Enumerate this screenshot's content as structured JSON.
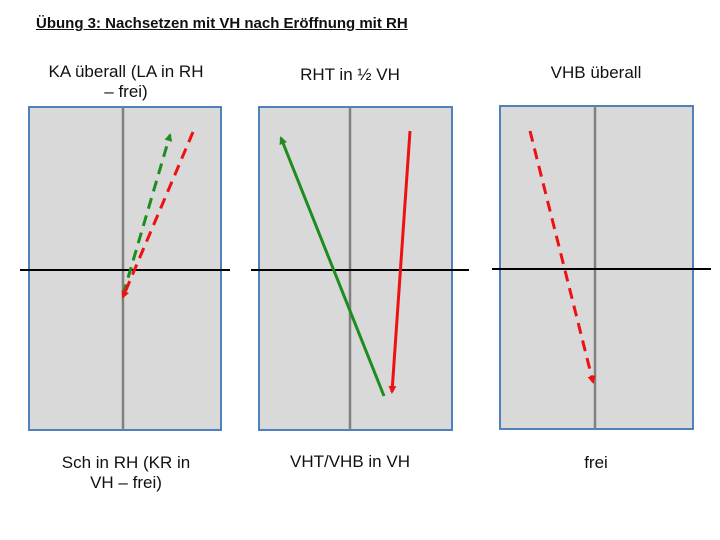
{
  "title": "Übung 3: Nachsetzen mit VH nach Eröffnung mit RH",
  "panels": [
    {
      "top_label_line1": "KA überall (LA in RH",
      "top_label_line2": "– frei)",
      "bottom_label_line1": "Sch in RH (KR in",
      "bottom_label_line2": "VH – frei)"
    },
    {
      "top_label_line1": "RHT in ½ VH",
      "top_label_line2": "",
      "bottom_label_line1": "VHT/VHB in VH",
      "bottom_label_line2": ""
    },
    {
      "top_label_line1": "VHB überall",
      "top_label_line2": "",
      "bottom_label_line1": "frei",
      "bottom_label_line2": ""
    }
  ],
  "colors": {
    "court_fill": "#d9d9d9",
    "court_border": "#4f81bd",
    "center_line": "#808080",
    "net": "#000000",
    "green": "#1e8c1e",
    "red": "#ee1111"
  }
}
